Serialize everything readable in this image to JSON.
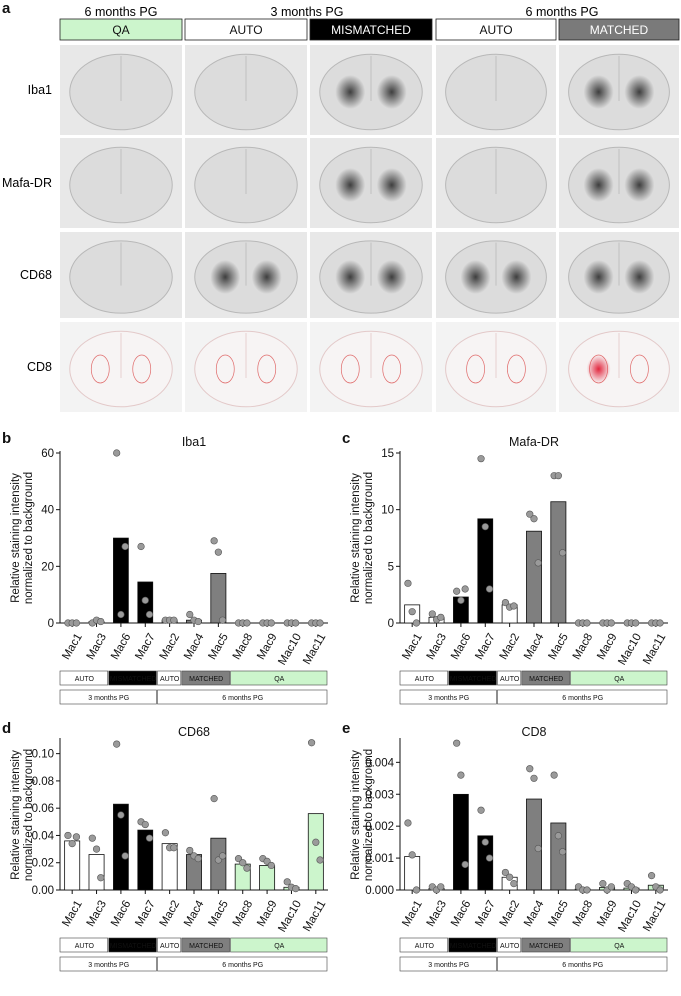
{
  "panel_a": {
    "letter": "a",
    "period_labels": [
      "6 months PG",
      "3 months PG",
      "6 months PG"
    ],
    "groups": [
      {
        "label": "QA",
        "fill": "#ccf5cc",
        "text": "#111111"
      },
      {
        "label": "AUTO",
        "fill": "#ffffff",
        "text": "#111111"
      },
      {
        "label": "MISMATCHED",
        "fill": "#000000",
        "text": "#ffffff"
      },
      {
        "label": "AUTO",
        "fill": "#ffffff",
        "text": "#111111"
      },
      {
        "label": "MATCHED",
        "fill": "#7a7a7a",
        "text": "#ffffff"
      }
    ],
    "row_labels": [
      "Iba1",
      "Mafa-DR",
      "CD68",
      "CD8"
    ]
  },
  "legend": {
    "groups": [
      "AUTO",
      "MISMATCHED",
      "AUTO",
      "MATCHED",
      "QA"
    ],
    "periods": [
      "3 months PG",
      "6 months PG"
    ]
  },
  "colors": {
    "AUTO": "#ffffff",
    "MISMATCHED": "#000000",
    "MATCHED": "#7f7f7f",
    "QA": "#ccf5cc",
    "point": "#9a9a9a"
  },
  "chart_data": [
    {
      "panel": "b",
      "type": "bar",
      "title": "Iba1",
      "ylabel": "Relative staining intensity\nnormalized to background",
      "categories": [
        "Mac1",
        "Mac3",
        "Mac6",
        "Mac7",
        "Mac2",
        "Mac4",
        "Mac5",
        "Mac8",
        "Mac9",
        "Mac10",
        "Mac11"
      ],
      "groups": [
        "AUTO",
        "AUTO",
        "MISMATCHED",
        "MISMATCHED",
        "AUTO",
        "MATCHED",
        "MATCHED",
        "QA",
        "QA",
        "QA",
        "QA"
      ],
      "values": [
        0,
        0.5,
        30,
        14.5,
        1,
        1,
        17.5,
        0,
        0,
        0,
        0
      ],
      "points": [
        [
          0,
          0,
          0
        ],
        [
          0,
          1,
          0.5
        ],
        [
          60,
          3,
          27
        ],
        [
          27,
          8,
          3
        ],
        [
          1,
          1,
          1
        ],
        [
          3,
          1,
          0.5
        ],
        [
          29,
          25,
          1
        ],
        [
          0,
          0,
          0
        ],
        [
          0,
          0,
          0
        ],
        [
          0,
          0,
          0
        ],
        [
          0,
          0,
          0
        ]
      ],
      "ylim": [
        0,
        60
      ],
      "yticks": [
        0,
        20,
        40,
        60
      ],
      "ytick_labels": [
        "0",
        "20",
        "40",
        "60"
      ]
    },
    {
      "panel": "c",
      "type": "bar",
      "title": "Mafa-DR",
      "ylabel": "Relative staining intensity\nnormalized to background",
      "categories": [
        "Mac1",
        "Mac3",
        "Mac6",
        "Mac7",
        "Mac2",
        "Mac4",
        "Mac5",
        "Mac8",
        "Mac9",
        "Mac10",
        "Mac11"
      ],
      "groups": [
        "AUTO",
        "AUTO",
        "MISMATCHED",
        "MISMATCHED",
        "AUTO",
        "MATCHED",
        "MATCHED",
        "QA",
        "QA",
        "QA",
        "QA"
      ],
      "values": [
        1.6,
        0.5,
        2.3,
        9.2,
        1.6,
        8.1,
        10.7,
        0,
        0,
        0,
        0
      ],
      "points": [
        [
          3.5,
          1,
          0
        ],
        [
          0.8,
          0.3,
          0.5
        ],
        [
          2.8,
          2,
          3
        ],
        [
          14.5,
          8.5,
          3
        ],
        [
          1.8,
          1.4,
          1.5
        ],
        [
          9.6,
          9.2,
          5.3
        ],
        [
          13,
          13,
          6.2
        ],
        [
          0,
          0,
          0
        ],
        [
          0,
          0,
          0
        ],
        [
          0,
          0,
          0
        ],
        [
          0,
          0,
          0
        ]
      ],
      "ylim": [
        0,
        15
      ],
      "yticks": [
        0,
        5,
        10,
        15
      ],
      "ytick_labels": [
        "0",
        "5",
        "10",
        "15"
      ]
    },
    {
      "panel": "d",
      "type": "bar",
      "title": "CD68",
      "ylabel": "Relative staining intensity\nnormalized to background",
      "categories": [
        "Mac1",
        "Mac3",
        "Mac6",
        "Mac7",
        "Mac2",
        "Mac4",
        "Mac5",
        "Mac8",
        "Mac9",
        "Mac10",
        "Mac11"
      ],
      "groups": [
        "AUTO",
        "AUTO",
        "MISMATCHED",
        "MISMATCHED",
        "AUTO",
        "MATCHED",
        "MATCHED",
        "QA",
        "QA",
        "QA",
        "QA"
      ],
      "values": [
        0.036,
        0.026,
        0.063,
        0.044,
        0.034,
        0.026,
        0.038,
        0.019,
        0.018,
        0.002,
        0.056
      ],
      "points": [
        [
          0.04,
          0.034,
          0.039
        ],
        [
          0.038,
          0.03,
          0.009
        ],
        [
          0.107,
          0.055,
          0.025
        ],
        [
          0.05,
          0.048,
          0.038
        ],
        [
          0.042,
          0.031,
          0.031
        ],
        [
          0.029,
          0.025,
          0.023
        ],
        [
          0.067,
          0.022,
          0.025
        ],
        [
          0.023,
          0.02,
          0.016
        ],
        [
          0.023,
          0.021,
          0.018
        ],
        [
          0.006,
          0.002,
          0.001
        ],
        [
          0.108,
          0.035,
          0.022
        ]
      ],
      "ylim": [
        0,
        0.11
      ],
      "yticks": [
        0,
        0.02,
        0.04,
        0.06,
        0.08,
        0.1
      ],
      "ytick_labels": [
        "0.00",
        "0.02",
        "0.04",
        "0.06",
        "0.08",
        "0.10"
      ]
    },
    {
      "panel": "e",
      "type": "bar",
      "title": "CD8",
      "ylabel": "Relative staining intensity\nnormalized to background",
      "categories": [
        "Mac1",
        "Mac3",
        "Mac6",
        "Mac7",
        "Mac2",
        "Mac4",
        "Mac5",
        "Mac8",
        "Mac9",
        "Mac10",
        "Mac11"
      ],
      "groups": [
        "AUTO",
        "AUTO",
        "MISMATCHED",
        "MISMATCHED",
        "AUTO",
        "MATCHED",
        "MATCHED",
        "QA",
        "QA",
        "QA",
        "QA"
      ],
      "values": [
        0.00105,
        5e-05,
        0.003,
        0.0017,
        0.0004,
        0.00285,
        0.0021,
        3e-05,
        8e-05,
        6e-05,
        0.00015
      ],
      "points": [
        [
          0.0021,
          0.0011,
          0.0
        ],
        [
          0.0001,
          0.0,
          0.0001
        ],
        [
          0.0046,
          0.0036,
          0.0008
        ],
        [
          0.0025,
          0.0015,
          0.001
        ],
        [
          0.00055,
          0.0004,
          0.0002
        ],
        [
          0.0038,
          0.0035,
          0.0013
        ],
        [
          0.0036,
          0.0017,
          0.0012
        ],
        [
          0.0001,
          0.0,
          0.0
        ],
        [
          0.0002,
          0.0,
          0.0001
        ],
        [
          0.0002,
          0.0001,
          0.0
        ],
        [
          0.00045,
          0.0001,
          0.0
        ]
      ],
      "ylim": [
        0,
        0.0047
      ],
      "yticks": [
        0,
        0.001,
        0.002,
        0.003,
        0.004
      ],
      "ytick_labels": [
        "0.000",
        "0.001",
        "0.002",
        "0.003",
        "0.004"
      ]
    }
  ]
}
